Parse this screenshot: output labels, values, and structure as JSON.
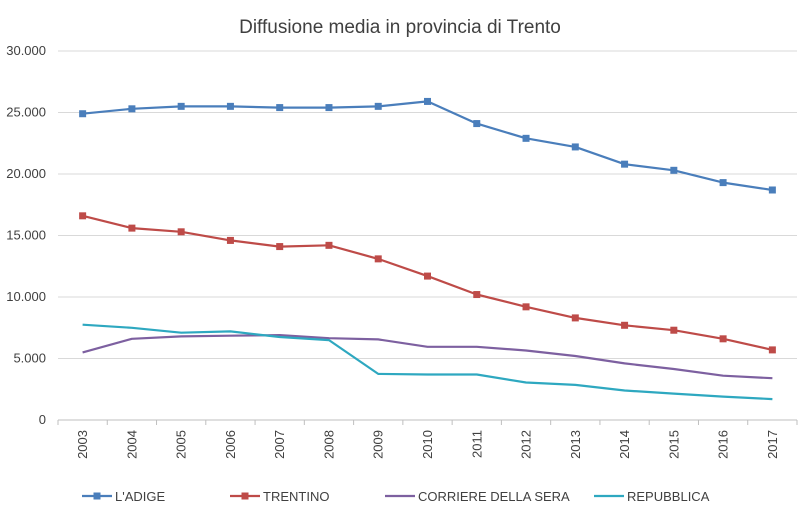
{
  "chart_data": {
    "type": "line",
    "title": "Diffusione media in provincia di Trento",
    "xlabel": "",
    "ylabel": "",
    "ylim": [
      0,
      30000
    ],
    "yticks": [
      0,
      5000,
      10000,
      15000,
      20000,
      25000,
      30000
    ],
    "ytick_labels": [
      "0",
      "5.000",
      "10.000",
      "15.000",
      "20.000",
      "25.000",
      "30.000"
    ],
    "categories": [
      "2003",
      "2004",
      "2005",
      "2006",
      "2007",
      "2008",
      "2009",
      "2010",
      "2011",
      "2012",
      "2013",
      "2014",
      "2015",
      "2016",
      "2017"
    ],
    "grid": true,
    "legend_position": "bottom",
    "series": [
      {
        "name": "L'ADIGE",
        "color": "#4a7ebb",
        "marker": "square",
        "values": [
          24900,
          25300,
          25500,
          25500,
          25400,
          25400,
          25500,
          25900,
          24100,
          22900,
          22200,
          20800,
          20300,
          19300,
          18700
        ]
      },
      {
        "name": "TRENTINO",
        "color": "#be4b48",
        "marker": "square",
        "values": [
          16600,
          15600,
          15300,
          14600,
          14100,
          14200,
          13100,
          11700,
          10200,
          9200,
          8300,
          7700,
          7300,
          6600,
          5700
        ]
      },
      {
        "name": "CORRIERE DELLA SERA",
        "color": "#7d60a0",
        "marker": "none",
        "values": [
          5500,
          6600,
          6800,
          6850,
          6900,
          6650,
          6550,
          5950,
          5950,
          5650,
          5200,
          4600,
          4150,
          3600,
          3400
        ]
      },
      {
        "name": "REPUBBLICA",
        "color": "#2ea8c0",
        "marker": "none",
        "values": [
          7750,
          7500,
          7100,
          7200,
          6750,
          6500,
          3750,
          3700,
          3700,
          3050,
          2850,
          2400,
          2150,
          1900,
          1700
        ]
      }
    ]
  }
}
